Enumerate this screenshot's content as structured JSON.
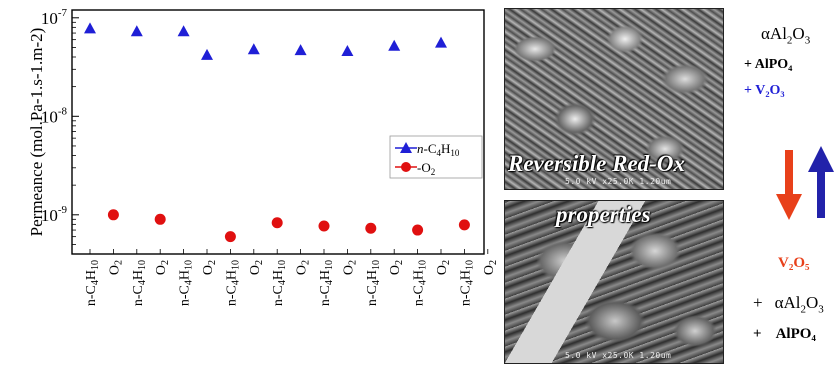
{
  "chart_data": {
    "type": "scatter",
    "ylabel": "Permeance (mol.Pa-1.s-1.m-2)",
    "yscale": "log",
    "ylim": [
      4e-10,
      1.2e-07
    ],
    "yticks": [
      {
        "value": 1e-09,
        "label_base": "10",
        "label_exp": "-9"
      },
      {
        "value": 1e-08,
        "label_base": "10",
        "label_exp": "-8"
      },
      {
        "value": 1e-07,
        "label_base": "10",
        "label_exp": "-7"
      }
    ],
    "categories": [
      {
        "pre": "n-C",
        "s1": "4",
        "mid": "H",
        "s2": "10"
      },
      {
        "pre": "O",
        "s1": "2",
        "mid": "",
        "s2": ""
      },
      {
        "pre": "n-C",
        "s1": "4",
        "mid": "H",
        "s2": "10"
      },
      {
        "pre": "O",
        "s1": "2",
        "mid": "",
        "s2": ""
      },
      {
        "pre": "n-C",
        "s1": "4",
        "mid": "H",
        "s2": "10"
      },
      {
        "pre": "O",
        "s1": "2",
        "mid": "",
        "s2": ""
      },
      {
        "pre": "n-C",
        "s1": "4",
        "mid": "H",
        "s2": "10"
      },
      {
        "pre": "O",
        "s1": "2",
        "mid": "",
        "s2": ""
      },
      {
        "pre": "n-C",
        "s1": "4",
        "mid": "H",
        "s2": "10"
      },
      {
        "pre": "O",
        "s1": "2",
        "mid": "",
        "s2": ""
      },
      {
        "pre": "n-C",
        "s1": "4",
        "mid": "H",
        "s2": "10"
      },
      {
        "pre": "O",
        "s1": "2",
        "mid": "",
        "s2": ""
      },
      {
        "pre": "n-C",
        "s1": "4",
        "mid": "H",
        "s2": "10"
      },
      {
        "pre": "O",
        "s1": "2",
        "mid": "",
        "s2": ""
      },
      {
        "pre": "n-C",
        "s1": "4",
        "mid": "H",
        "s2": "10"
      },
      {
        "pre": "O",
        "s1": "2",
        "mid": "",
        "s2": ""
      },
      {
        "pre": "n-C",
        "s1": "4",
        "mid": "H",
        "s2": "10"
      },
      {
        "pre": "O",
        "s1": "2",
        "mid": "",
        "s2": ""
      },
      {
        "pre": "n-C",
        "s1": "4",
        "mid": "H",
        "s2": "10"
      }
    ],
    "series": [
      {
        "name": "n-C4H10",
        "legend": {
          "pre": "n",
          "mid": "-C",
          "s1": "4",
          "mid2": "H",
          "s2": "10"
        },
        "marker": "triangle",
        "color": "#1f1fd6",
        "points": [
          {
            "x": 1,
            "y": 7.8e-08
          },
          {
            "x": 3,
            "y": 7.3e-08
          },
          {
            "x": 5,
            "y": 7.3e-08
          },
          {
            "x": 6,
            "y": 4.2e-08
          },
          {
            "x": 8,
            "y": 4.8e-08
          },
          {
            "x": 10,
            "y": 4.7e-08
          },
          {
            "x": 12,
            "y": 4.6e-08
          },
          {
            "x": 14,
            "y": 5.2e-08
          },
          {
            "x": 16,
            "y": 5.6e-08
          }
        ]
      },
      {
        "name": "O2",
        "legend": {
          "pre": "",
          "mid": "-O",
          "s1": "2",
          "mid2": "",
          "s2": ""
        },
        "marker": "circle",
        "color": "#e01010",
        "points": [
          {
            "x": 2,
            "y": 1e-09
          },
          {
            "x": 4,
            "y": 9e-10
          },
          {
            "x": 7,
            "y": 6e-10
          },
          {
            "x": 9,
            "y": 8.3e-10
          },
          {
            "x": 11,
            "y": 7.7e-10
          },
          {
            "x": 13,
            "y": 7.3e-10
          },
          {
            "x": 15,
            "y": 7e-10
          },
          {
            "x": 17,
            "y": 7.9e-10
          }
        ]
      }
    ],
    "legend_position": "right-middle",
    "grid": false
  },
  "images": {
    "sem_top_scale": "5.0 kV x25.0K 1.20um",
    "sem_bottom_scale": "5.0 kV x25.0K 1.20um",
    "overlay_line1": "Reversible Red-Ox",
    "overlay_line2": "properties"
  },
  "scheme": {
    "top_alpha": "α",
    "top_al": "Al",
    "top_sub2": "2",
    "top_o": "O",
    "top_sub3": "3",
    "alpo4_plus": "+ ",
    "alpo4": "AlPO₄",
    "v2o3_plus": "+ ",
    "v2o3": "V₂O₃",
    "v2o5": "V₂O₅",
    "bottom_plus1": "+",
    "bottom_alpha": "α",
    "bottom_al": "Al",
    "bottom_sub2": "2",
    "bottom_o": "O",
    "bottom_sub3": "3",
    "bottom_plus2": "+",
    "bottom_alpo4": "AlPO₄",
    "arrow_down_color": "#e8401a",
    "arrow_up_color": "#2222aa",
    "v2o3_color": "#1f1fd6",
    "v2o5_color": "#e8401a"
  }
}
